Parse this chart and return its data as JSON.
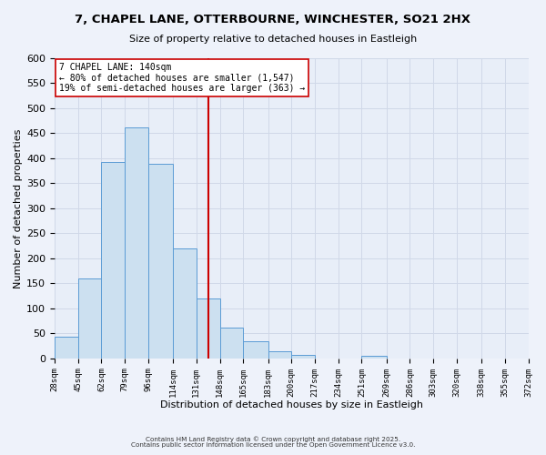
{
  "title": "7, CHAPEL LANE, OTTERBOURNE, WINCHESTER, SO21 2HX",
  "subtitle": "Size of property relative to detached houses in Eastleigh",
  "xlabel": "Distribution of detached houses by size in Eastleigh",
  "ylabel": "Number of detached properties",
  "bar_edges": [
    28,
    45,
    62,
    79,
    96,
    114,
    131,
    148,
    165,
    183,
    200,
    217,
    234,
    251,
    269,
    286,
    303,
    320,
    338,
    355,
    372
  ],
  "bar_heights": [
    44,
    160,
    393,
    462,
    389,
    220,
    120,
    62,
    35,
    15,
    7,
    0,
    0,
    6,
    0,
    0,
    0,
    0,
    0,
    0
  ],
  "bar_color": "#cce0f0",
  "bar_edge_color": "#5b9bd5",
  "property_line_x": 140,
  "property_line_color": "#cc0000",
  "annotation_title": "7 CHAPEL LANE: 140sqm",
  "annotation_line1": "← 80% of detached houses are smaller (1,547)",
  "annotation_line2": "19% of semi-detached houses are larger (363) →",
  "annotation_box_color": "#ffffff",
  "annotation_box_edge": "#cc0000",
  "tick_labels": [
    "28sqm",
    "45sqm",
    "62sqm",
    "79sqm",
    "96sqm",
    "114sqm",
    "131sqm",
    "148sqm",
    "165sqm",
    "183sqm",
    "200sqm",
    "217sqm",
    "234sqm",
    "251sqm",
    "269sqm",
    "286sqm",
    "303sqm",
    "320sqm",
    "338sqm",
    "355sqm",
    "372sqm"
  ],
  "ylim": [
    0,
    600
  ],
  "yticks": [
    0,
    50,
    100,
    150,
    200,
    250,
    300,
    350,
    400,
    450,
    500,
    550,
    600
  ],
  "grid_color": "#d0d8e8",
  "background_color": "#e8eef8",
  "fig_background_color": "#eef2fa",
  "footer_line1": "Contains HM Land Registry data © Crown copyright and database right 2025.",
  "footer_line2": "Contains public sector information licensed under the Open Government Licence v3.0."
}
